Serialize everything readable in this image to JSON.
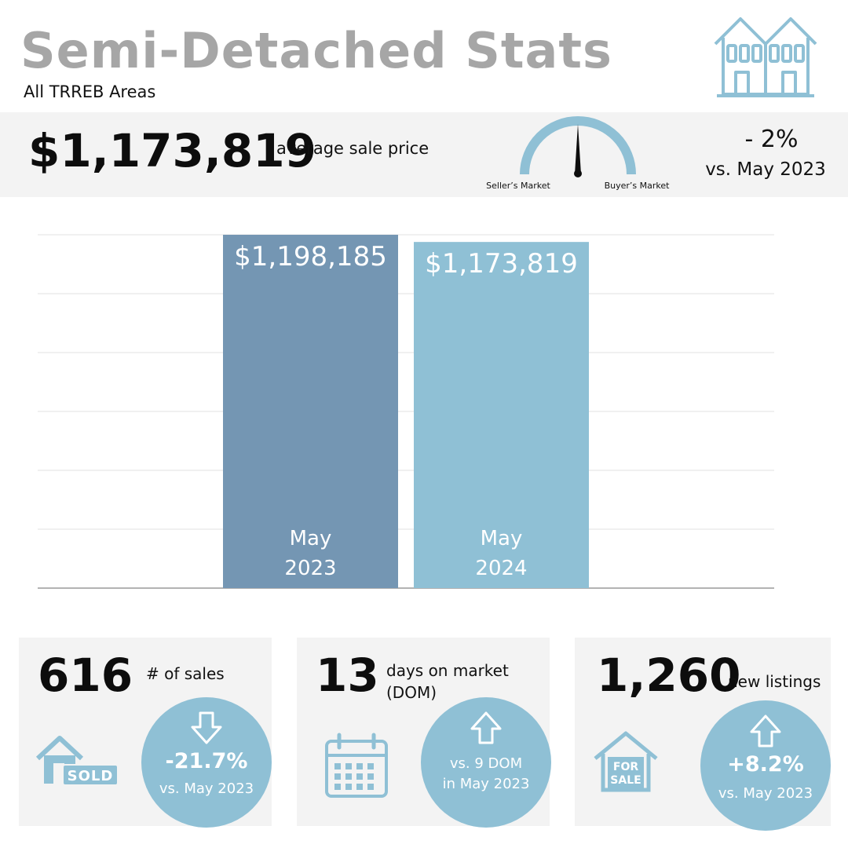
{
  "header": {
    "title": "Semi-Detached Stats",
    "subtitle": "All TRREB Areas",
    "logo_icon": "semi-detached-house-icon"
  },
  "price_band": {
    "average_price": "$1,173,819",
    "average_price_label": "average sale price",
    "gauge": {
      "left_label": "Seller’s Market",
      "right_label": "Buyer’s Market",
      "needle_position": 0.5
    },
    "change": "- 2%",
    "change_vs": "vs. May 2023"
  },
  "chart_data": {
    "type": "bar",
    "categories": [
      "May 2023",
      "May 2024"
    ],
    "category_lines": [
      [
        "May",
        "2023"
      ],
      [
        "May",
        "2024"
      ]
    ],
    "values": [
      1198185,
      1173819
    ],
    "value_labels": [
      "$1,198,185",
      "$1,173,819"
    ],
    "ylim": [
      0,
      1198185
    ],
    "grid": true,
    "colors": [
      "#7496b3",
      "#8fc0d5"
    ]
  },
  "cards": [
    {
      "value": "616",
      "label_lines": [
        "# of sales"
      ],
      "icon": "sold-house-icon",
      "icon_text": "SOLD",
      "arrow": "down-arrow-icon",
      "pct": "-21.7%",
      "vs_lines": [
        "vs. May 2023"
      ]
    },
    {
      "value": "13",
      "label_lines": [
        "days on market",
        "(DOM)"
      ],
      "icon": "calendar-icon",
      "arrow": "up-arrow-icon",
      "pct": "",
      "vs_lines": [
        "vs. 9 DOM",
        "in May 2023"
      ]
    },
    {
      "value": "1,260",
      "label_lines": [
        "new listings"
      ],
      "icon": "for-sale-house-icon",
      "icon_text_lines": [
        "FOR",
        "SALE"
      ],
      "arrow": "up-arrow-icon",
      "pct": "+8.2%",
      "vs_lines": [
        "vs. May 2023"
      ]
    }
  ],
  "colors": {
    "accent_light": "#8fc0d5",
    "accent_dark": "#7496b3",
    "title_gray": "#a6a6a6",
    "band_gray": "#f3f3f3"
  }
}
